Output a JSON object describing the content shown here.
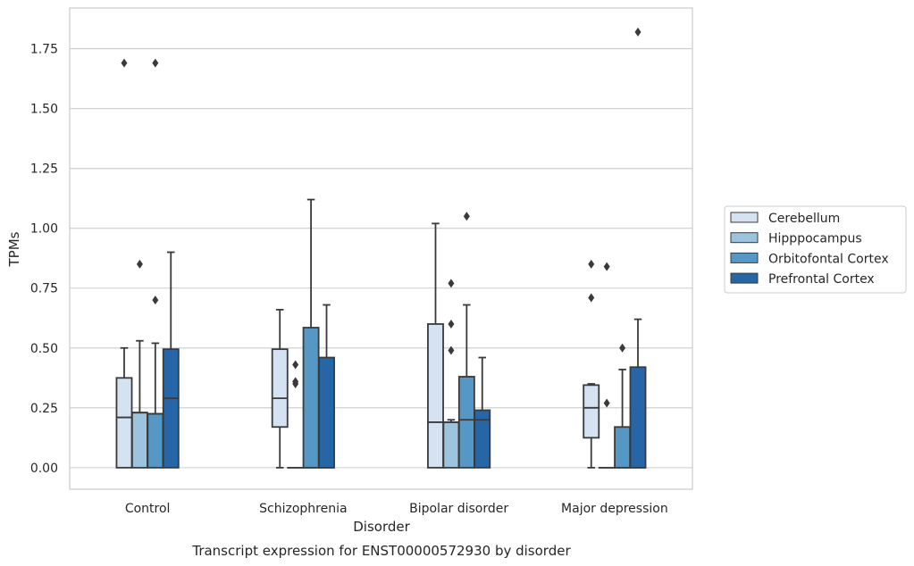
{
  "chart_data": {
    "type": "boxplot",
    "caption": "Transcript expression for ENST00000572930 by disorder",
    "xlabel": "Disorder",
    "ylabel": "TPMs",
    "ylim": [
      -0.09,
      1.92
    ],
    "yticks": [
      0.0,
      0.25,
      0.5,
      0.75,
      1.0,
      1.25,
      1.5,
      1.75
    ],
    "ytick_labels": [
      "0.00",
      "0.25",
      "0.50",
      "0.75",
      "1.00",
      "1.25",
      "1.50",
      "1.75"
    ],
    "grid": "horizontal",
    "legend_position": "right",
    "categories": [
      "Control",
      "Schizophrenia",
      "Bipolar disorder",
      "Major depression"
    ],
    "series": [
      {
        "name": "Cerebellum",
        "color": "#d4e2f1",
        "boxes": [
          {
            "min": 0.0,
            "q1": 0.0,
            "median": 0.21,
            "q3": 0.375,
            "max": 0.5,
            "outliers": [
              1.69
            ]
          },
          {
            "min": 0.0,
            "q1": 0.17,
            "median": 0.29,
            "q3": 0.495,
            "max": 0.66,
            "outliers": []
          },
          {
            "min": 0.0,
            "q1": 0.0,
            "median": 0.19,
            "q3": 0.6,
            "max": 1.02,
            "outliers": []
          },
          {
            "min": 0.0,
            "q1": 0.125,
            "median": 0.25,
            "q3": 0.345,
            "max": 0.35,
            "outliers": [
              0.71,
              0.85
            ]
          }
        ]
      },
      {
        "name": "Hipppocampus",
        "color": "#9dc4df",
        "boxes": [
          {
            "min": 0.0,
            "q1": 0.0,
            "median": 0.23,
            "q3": 0.23,
            "max": 0.53,
            "outliers": [
              0.85
            ]
          },
          {
            "min": 0.0,
            "q1": 0.0,
            "median": 0.0,
            "q3": 0.0,
            "max": 0.0,
            "outliers": [
              0.35,
              0.36,
              0.43
            ]
          },
          {
            "min": 0.0,
            "q1": 0.0,
            "median": 0.19,
            "q3": 0.19,
            "max": 0.2,
            "outliers": [
              0.49,
              0.6,
              0.77
            ]
          },
          {
            "min": 0.0,
            "q1": 0.0,
            "median": 0.0,
            "q3": 0.0,
            "max": 0.0,
            "outliers": [
              0.27,
              0.84
            ]
          }
        ]
      },
      {
        "name": "Orbitofontal Cortex",
        "color": "#5598c5",
        "boxes": [
          {
            "min": 0.0,
            "q1": 0.0,
            "median": 0.225,
            "q3": 0.225,
            "max": 0.52,
            "outliers": [
              0.7,
              1.69
            ]
          },
          {
            "min": 0.0,
            "q1": 0.0,
            "median": 0.0,
            "q3": 0.585,
            "max": 1.12,
            "outliers": []
          },
          {
            "min": 0.0,
            "q1": 0.0,
            "median": 0.2,
            "q3": 0.38,
            "max": 0.68,
            "outliers": [
              1.05
            ]
          },
          {
            "min": 0.0,
            "q1": 0.0,
            "median": 0.0,
            "q3": 0.17,
            "max": 0.41,
            "outliers": [
              0.5
            ]
          }
        ]
      },
      {
        "name": "Prefrontal Cortex",
        "color": "#2766a6",
        "boxes": [
          {
            "min": 0.0,
            "q1": 0.0,
            "median": 0.29,
            "q3": 0.495,
            "max": 0.9,
            "outliers": []
          },
          {
            "min": 0.0,
            "q1": 0.0,
            "median": 0.0,
            "q3": 0.46,
            "max": 0.68,
            "outliers": []
          },
          {
            "min": 0.0,
            "q1": 0.0,
            "median": 0.2,
            "q3": 0.24,
            "max": 0.46,
            "outliers": []
          },
          {
            "min": 0.0,
            "q1": 0.0,
            "median": 0.0,
            "q3": 0.42,
            "max": 0.62,
            "outliers": [
              1.82
            ]
          }
        ]
      }
    ]
  }
}
